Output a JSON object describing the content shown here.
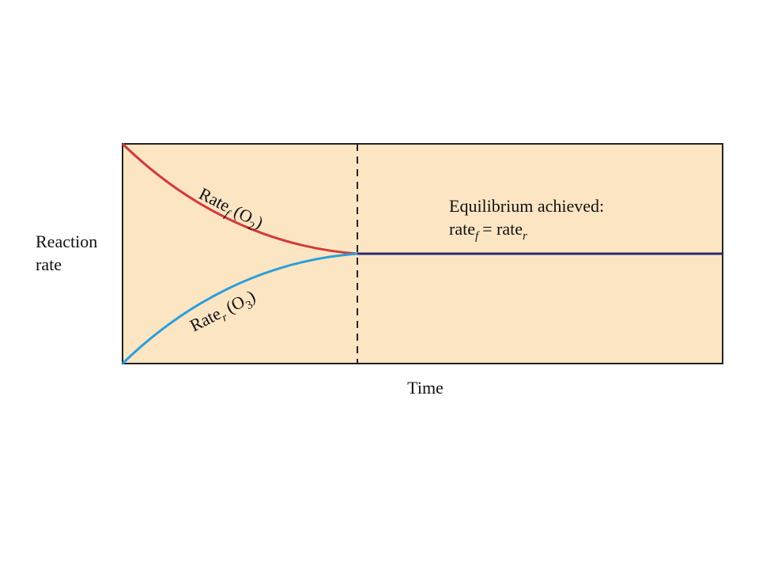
{
  "axes": {
    "y_label": [
      "Reaction",
      "rate"
    ],
    "x_label": "Time"
  },
  "curves": {
    "forward": {
      "label": [
        "Rate",
        "f",
        "(O",
        "2",
        ")"
      ]
    },
    "reverse": {
      "label": [
        "Rate",
        "r",
        "(O",
        "3",
        ")"
      ]
    }
  },
  "annotation": {
    "line1": "Equilibrium achieved:",
    "line2": [
      "rate",
      "f",
      "= rate",
      "r"
    ]
  }
}
